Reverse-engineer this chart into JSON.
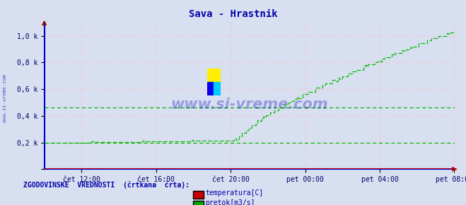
{
  "title": "Sava - Hrastnik",
  "title_color": "#0000aa",
  "bg_color": "#d8dff0",
  "plot_bg_color": "#d8dff0",
  "x_labels": [
    "čet 12:00",
    "čet 16:00",
    "čet 20:00",
    "pet 00:00",
    "pet 04:00",
    "pet 08:00"
  ],
  "x_ticks_norm": [
    0.0909,
    0.2727,
    0.4545,
    0.6363,
    0.8181,
    0.9999
  ],
  "y_ticks": [
    0.0,
    0.2,
    0.4,
    0.6,
    0.8,
    1.0
  ],
  "y_tick_labels": [
    "",
    "0,2 k",
    "0,4 k",
    "0,6 k",
    "0,8 k",
    "1,0 k"
  ],
  "ylim": [
    0.0,
    1.1
  ],
  "xlim": [
    0.0,
    1.0
  ],
  "grid_color": "#ffbbbb",
  "axis_color": "#0000cc",
  "flow_color": "#00bb00",
  "temp_color": "#cc0000",
  "hist_flow_color": "#00bb00",
  "watermark": "www.si-vreme.com",
  "watermark_color": "#0000bb",
  "side_label": "www.si-vreme.com",
  "legend_text": "ZGODOVINSKE  VREDNOSTI  (črtkana  črta):",
  "legend_temp": "temperatura[C]",
  "legend_flow": "pretok[m3/s]",
  "hist_line1": 0.2,
  "hist_line2": 0.463,
  "num_points": 290,
  "temp_value": 0.008
}
